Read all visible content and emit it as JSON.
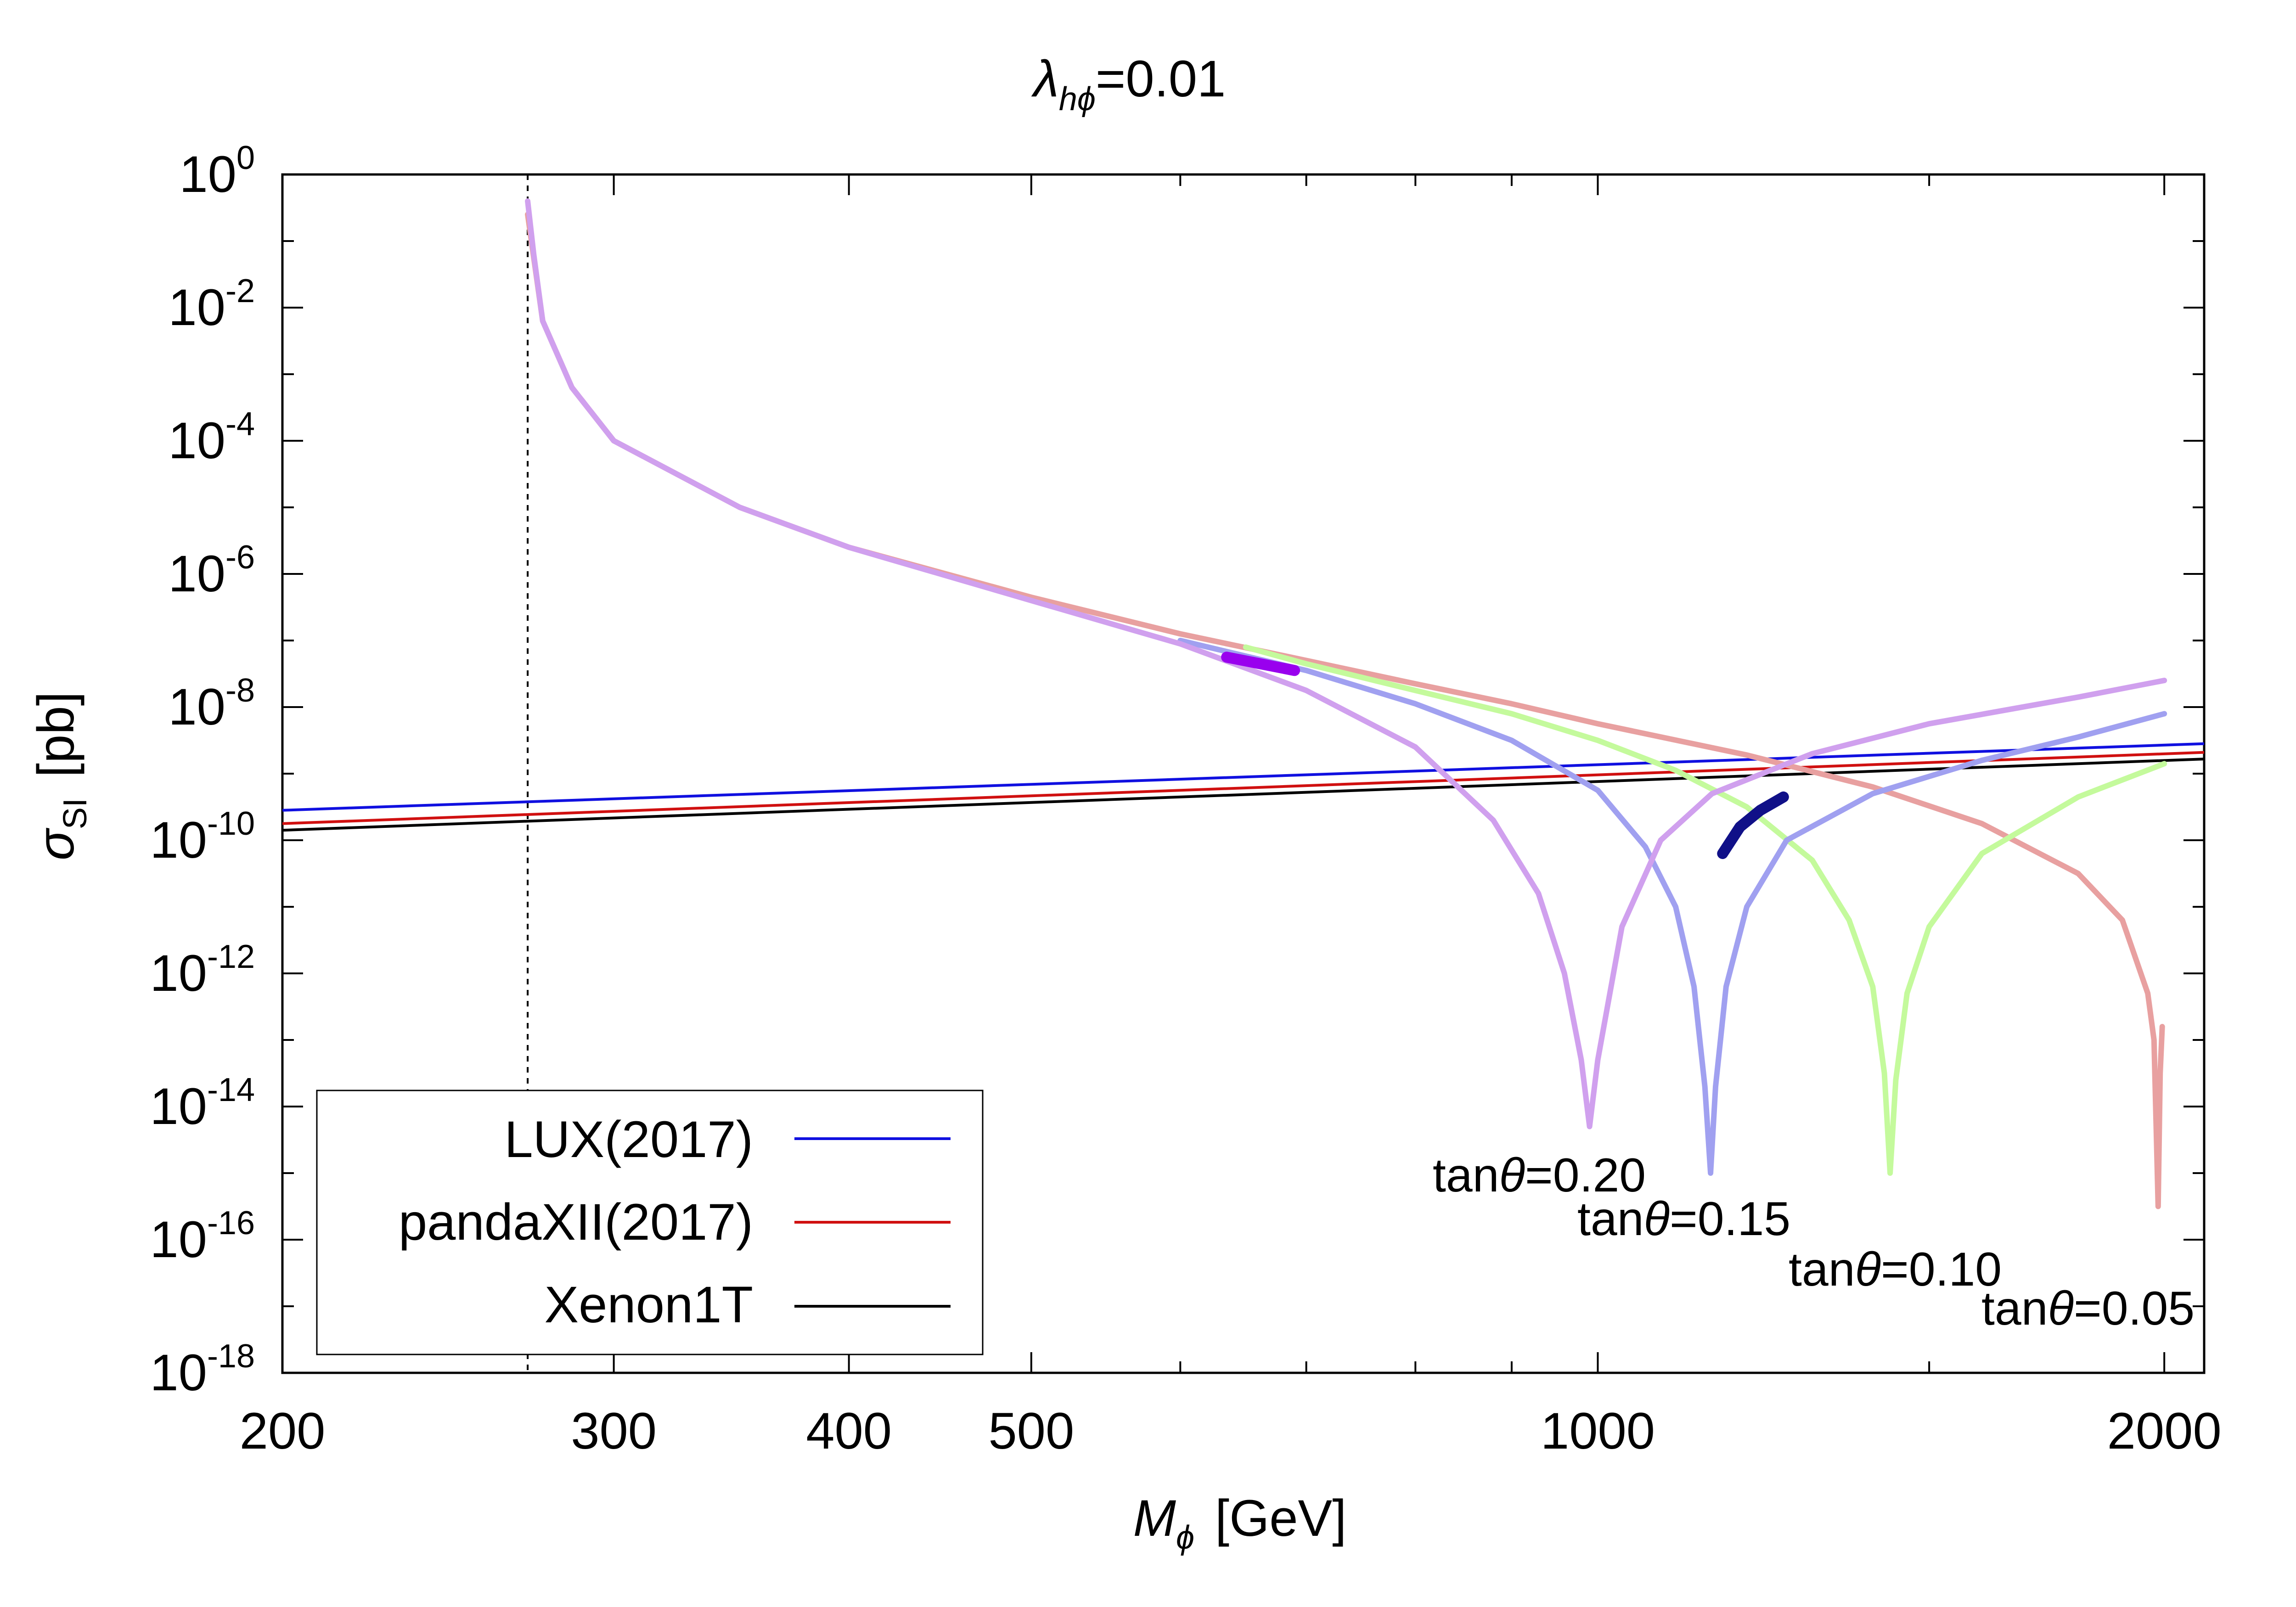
{
  "chart_data": {
    "type": "line",
    "title_prefix": "λ",
    "title_subscript": "hϕ",
    "title_value": "=0.01",
    "xlabel_symbol": "M",
    "xlabel_subscript": "ϕ",
    "xlabel_unit": "[GeV]",
    "ylabel_symbol": "σ",
    "ylabel_subscript": "SI",
    "ylabel_unit": "[pb]",
    "xscale": "log",
    "yscale": "log",
    "xlim": [
      200,
      2100
    ],
    "ylim_exp": [
      -18,
      0
    ],
    "xticks": [
      200,
      300,
      400,
      500,
      1000,
      2000
    ],
    "xticks_minor": [
      600,
      700,
      800,
      900,
      1500
    ],
    "yticks": [
      {
        "base": "10",
        "exp": "0",
        "value": 0
      },
      {
        "base": "10",
        "exp": "-2",
        "value": -2
      },
      {
        "base": "10",
        "exp": "-4",
        "value": -4
      },
      {
        "base": "10",
        "exp": "-6",
        "value": -6
      },
      {
        "base": "10",
        "exp": "-8",
        "value": -8
      },
      {
        "base": "10",
        "exp": "-10",
        "value": -10
      },
      {
        "base": "10",
        "exp": "-12",
        "value": -12
      },
      {
        "base": "10",
        "exp": "-14",
        "value": -14
      },
      {
        "base": "10",
        "exp": "-16",
        "value": -16
      },
      {
        "base": "10",
        "exp": "-18",
        "value": -18
      }
    ],
    "threshold_line_x": 270,
    "experimental_limits": [
      {
        "name": "LUX(2017)",
        "color": "#1010e0",
        "points": [
          [
            200,
            -9.55
          ],
          [
            2100,
            -8.55
          ]
        ]
      },
      {
        "name": "pandaXII(2017)",
        "color": "#d01010",
        "points": [
          [
            200,
            -9.75
          ],
          [
            2100,
            -8.68
          ]
        ]
      },
      {
        "name": "Xenon1T",
        "color": "#000000",
        "points": [
          [
            200,
            -9.85
          ],
          [
            2100,
            -8.78
          ]
        ]
      }
    ],
    "series": [
      {
        "name": "tanθ=0.05",
        "label_prefix": "tan",
        "label_theta": "θ",
        "label_value": "=0.05",
        "color": "#e8a0a0",
        "label_color": "#cc0000",
        "points": [
          [
            270,
            -0.6
          ],
          [
            275,
            -2.2
          ],
          [
            285,
            -3.2
          ],
          [
            300,
            -4.0
          ],
          [
            350,
            -5.0
          ],
          [
            400,
            -5.6
          ],
          [
            500,
            -6.35
          ],
          [
            600,
            -6.9
          ],
          [
            700,
            -7.3
          ],
          [
            800,
            -7.65
          ],
          [
            900,
            -7.95
          ],
          [
            1000,
            -8.25
          ],
          [
            1200,
            -8.72
          ],
          [
            1400,
            -9.2
          ],
          [
            1600,
            -9.75
          ],
          [
            1800,
            -10.5
          ],
          [
            1900,
            -11.2
          ],
          [
            1960,
            -12.3
          ],
          [
            1975,
            -13.0
          ],
          [
            1985,
            -15.5
          ],
          [
            1990,
            -13.5
          ],
          [
            1995,
            -12.8
          ]
        ]
      },
      {
        "name": "tanθ=0.10",
        "label_prefix": "tan",
        "label_theta": "θ",
        "label_value": "=0.10",
        "color": "#c4fa9c",
        "label_color": "#90ee50",
        "points": [
          [
            650,
            -7.1
          ],
          [
            700,
            -7.35
          ],
          [
            800,
            -7.75
          ],
          [
            900,
            -8.1
          ],
          [
            1000,
            -8.5
          ],
          [
            1100,
            -8.95
          ],
          [
            1200,
            -9.5
          ],
          [
            1300,
            -10.3
          ],
          [
            1360,
            -11.2
          ],
          [
            1400,
            -12.2
          ],
          [
            1420,
            -13.5
          ],
          [
            1430,
            -15.0
          ],
          [
            1440,
            -13.6
          ],
          [
            1460,
            -12.3
          ],
          [
            1500,
            -11.3
          ],
          [
            1600,
            -10.2
          ],
          [
            1800,
            -9.35
          ],
          [
            2000,
            -8.85
          ]
        ]
      },
      {
        "name": "tanθ=0.15",
        "label_prefix": "tan",
        "label_theta": "θ",
        "label_value": "=0.15",
        "color": "#a0a0f0",
        "label_color": "#1010e0",
        "points": [
          [
            600,
            -7.0
          ],
          [
            700,
            -7.45
          ],
          [
            800,
            -7.95
          ],
          [
            900,
            -8.5
          ],
          [
            1000,
            -9.25
          ],
          [
            1060,
            -10.1
          ],
          [
            1100,
            -11.0
          ],
          [
            1125,
            -12.2
          ],
          [
            1140,
            -13.7
          ],
          [
            1148,
            -15.0
          ],
          [
            1155,
            -13.7
          ],
          [
            1170,
            -12.2
          ],
          [
            1200,
            -11.0
          ],
          [
            1260,
            -10.0
          ],
          [
            1400,
            -9.3
          ],
          [
            1600,
            -8.8
          ],
          [
            1800,
            -8.45
          ],
          [
            2000,
            -8.1
          ]
        ]
      },
      {
        "name": "tanθ=0.20",
        "label_prefix": "tan",
        "label_theta": "θ",
        "label_value": "=0.20",
        "color": "#d0a0ee",
        "label_color": "#cc10ee",
        "points": [
          [
            270,
            -0.4
          ],
          [
            272,
            -1.2
          ],
          [
            275,
            -2.2
          ],
          [
            285,
            -3.2
          ],
          [
            300,
            -4.0
          ],
          [
            350,
            -5.0
          ],
          [
            400,
            -5.6
          ],
          [
            500,
            -6.4
          ],
          [
            600,
            -7.05
          ],
          [
            700,
            -7.75
          ],
          [
            800,
            -8.6
          ],
          [
            880,
            -9.7
          ],
          [
            930,
            -10.8
          ],
          [
            960,
            -12.0
          ],
          [
            980,
            -13.3
          ],
          [
            990,
            -14.3
          ],
          [
            1000,
            -13.3
          ],
          [
            1030,
            -11.3
          ],
          [
            1080,
            -10.0
          ],
          [
            1150,
            -9.3
          ],
          [
            1300,
            -8.7
          ],
          [
            1500,
            -8.25
          ],
          [
            1800,
            -7.85
          ],
          [
            2000,
            -7.6
          ]
        ]
      }
    ],
    "highlights": [
      {
        "color": "#9900ee",
        "points": [
          [
            635,
            -7.25
          ],
          [
            690,
            -7.45
          ]
        ]
      },
      {
        "color": "#101088",
        "points": [
          [
            1165,
            -10.2
          ],
          [
            1190,
            -9.8
          ],
          [
            1220,
            -9.55
          ],
          [
            1255,
            -9.35
          ]
        ]
      }
    ]
  },
  "legend": {
    "items": [
      {
        "label": "LUX(2017)",
        "color": "#1010e0"
      },
      {
        "label": "pandaXII(2017)",
        "color": "#d01010"
      },
      {
        "label": "Xenon1T",
        "color": "#000000"
      }
    ]
  }
}
